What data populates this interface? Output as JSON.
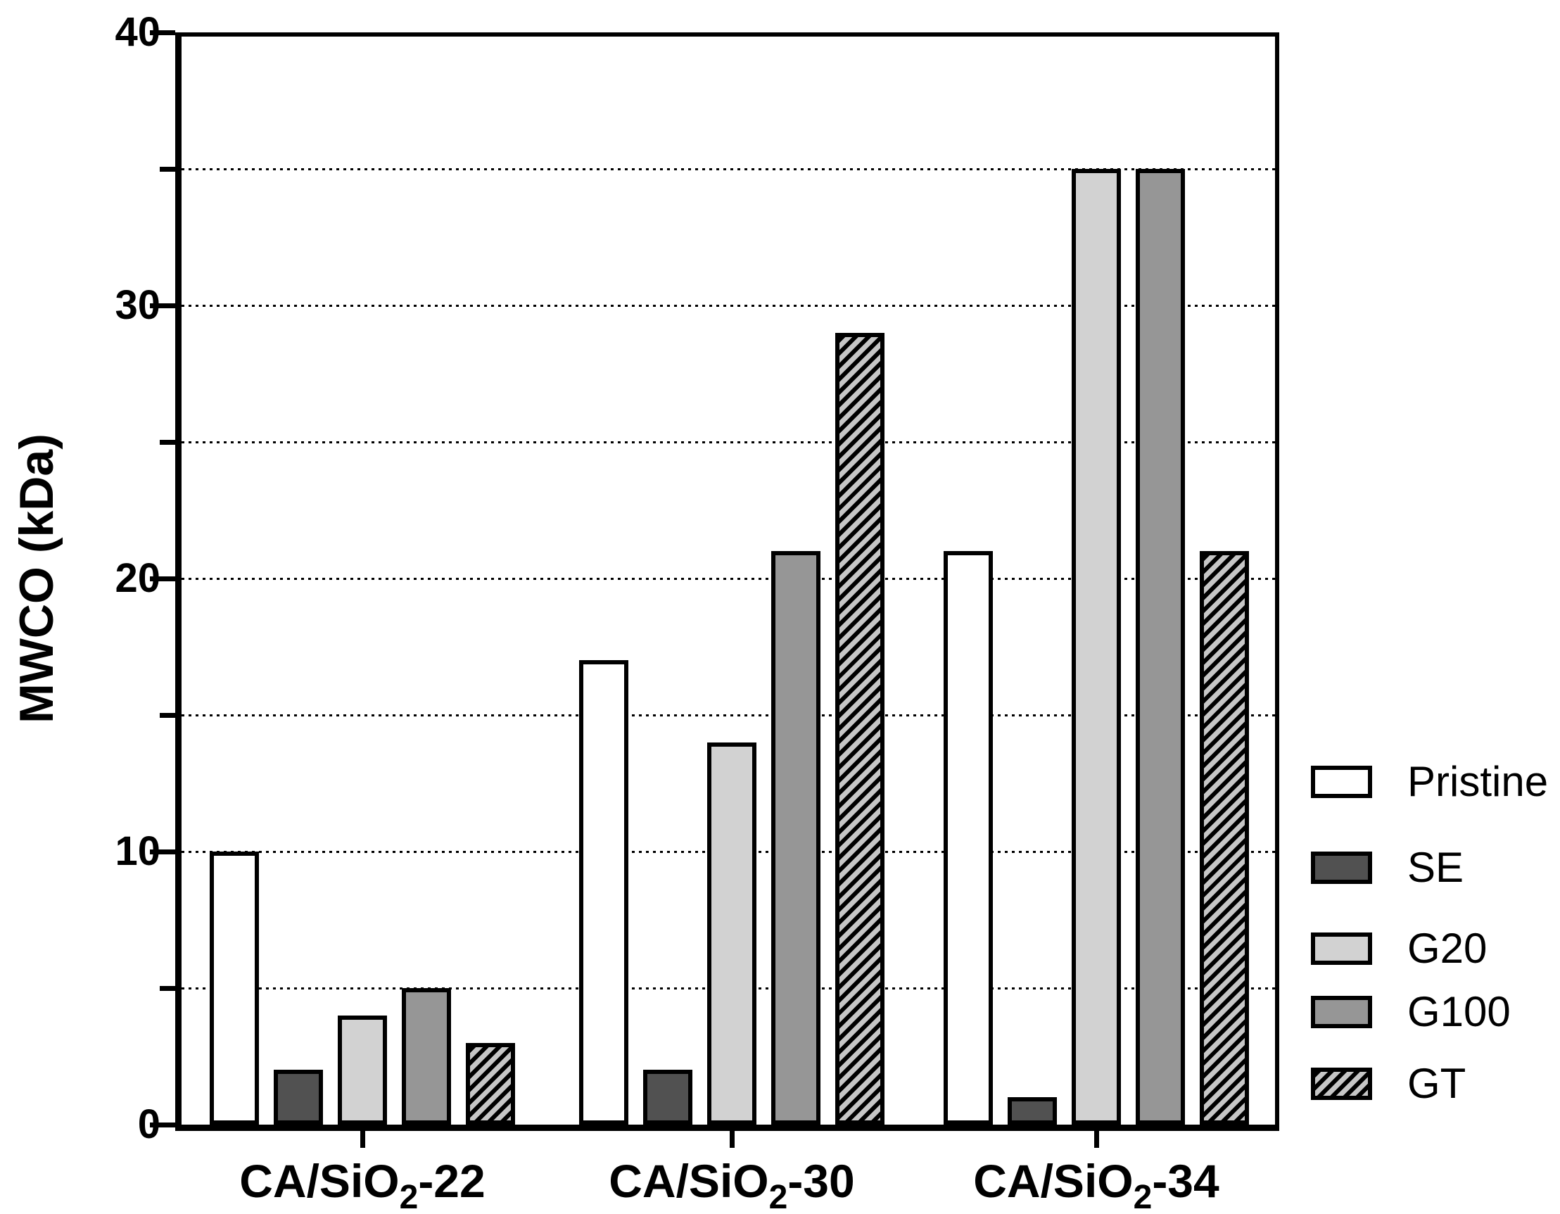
{
  "chart_data": {
    "type": "bar",
    "title": "",
    "ylabel": "MWCO (kDa)",
    "xlabel": "",
    "ylim": [
      0,
      40
    ],
    "ytick_major": [
      0,
      10,
      20,
      30,
      40
    ],
    "ytick_minor": [
      5,
      15,
      25,
      35
    ],
    "gridlines": [
      5,
      10,
      15,
      20,
      25,
      30,
      35
    ],
    "grid_style": "dotted",
    "legend_position": "right-outside",
    "categories": [
      {
        "pre": "CA/SiO",
        "sub": "2",
        "post": "-22"
      },
      {
        "pre": "CA/SiO",
        "sub": "2",
        "post": "-30"
      },
      {
        "pre": "CA/SiO",
        "sub": "2",
        "post": "-34"
      }
    ],
    "series": [
      {
        "name": "Pristine",
        "fill": "#ffffff",
        "pattern": "solid",
        "values": [
          10,
          17,
          21
        ]
      },
      {
        "name": "SE",
        "fill": "#515151",
        "pattern": "solid",
        "values": [
          2,
          2,
          1
        ]
      },
      {
        "name": "G20",
        "fill": "#d2d2d2",
        "pattern": "solid",
        "values": [
          4,
          14,
          35
        ]
      },
      {
        "name": "G100",
        "fill": "#969696",
        "pattern": "solid",
        "values": [
          5,
          21,
          35
        ]
      },
      {
        "name": "GT",
        "fill": "#c6c6c6",
        "pattern": "diagonal-hatch",
        "hatch_color": "#000000",
        "values": [
          3,
          29,
          21
        ]
      }
    ],
    "colors": {
      "axis": "#000000",
      "text": "#000000",
      "background": "#ffffff"
    }
  }
}
